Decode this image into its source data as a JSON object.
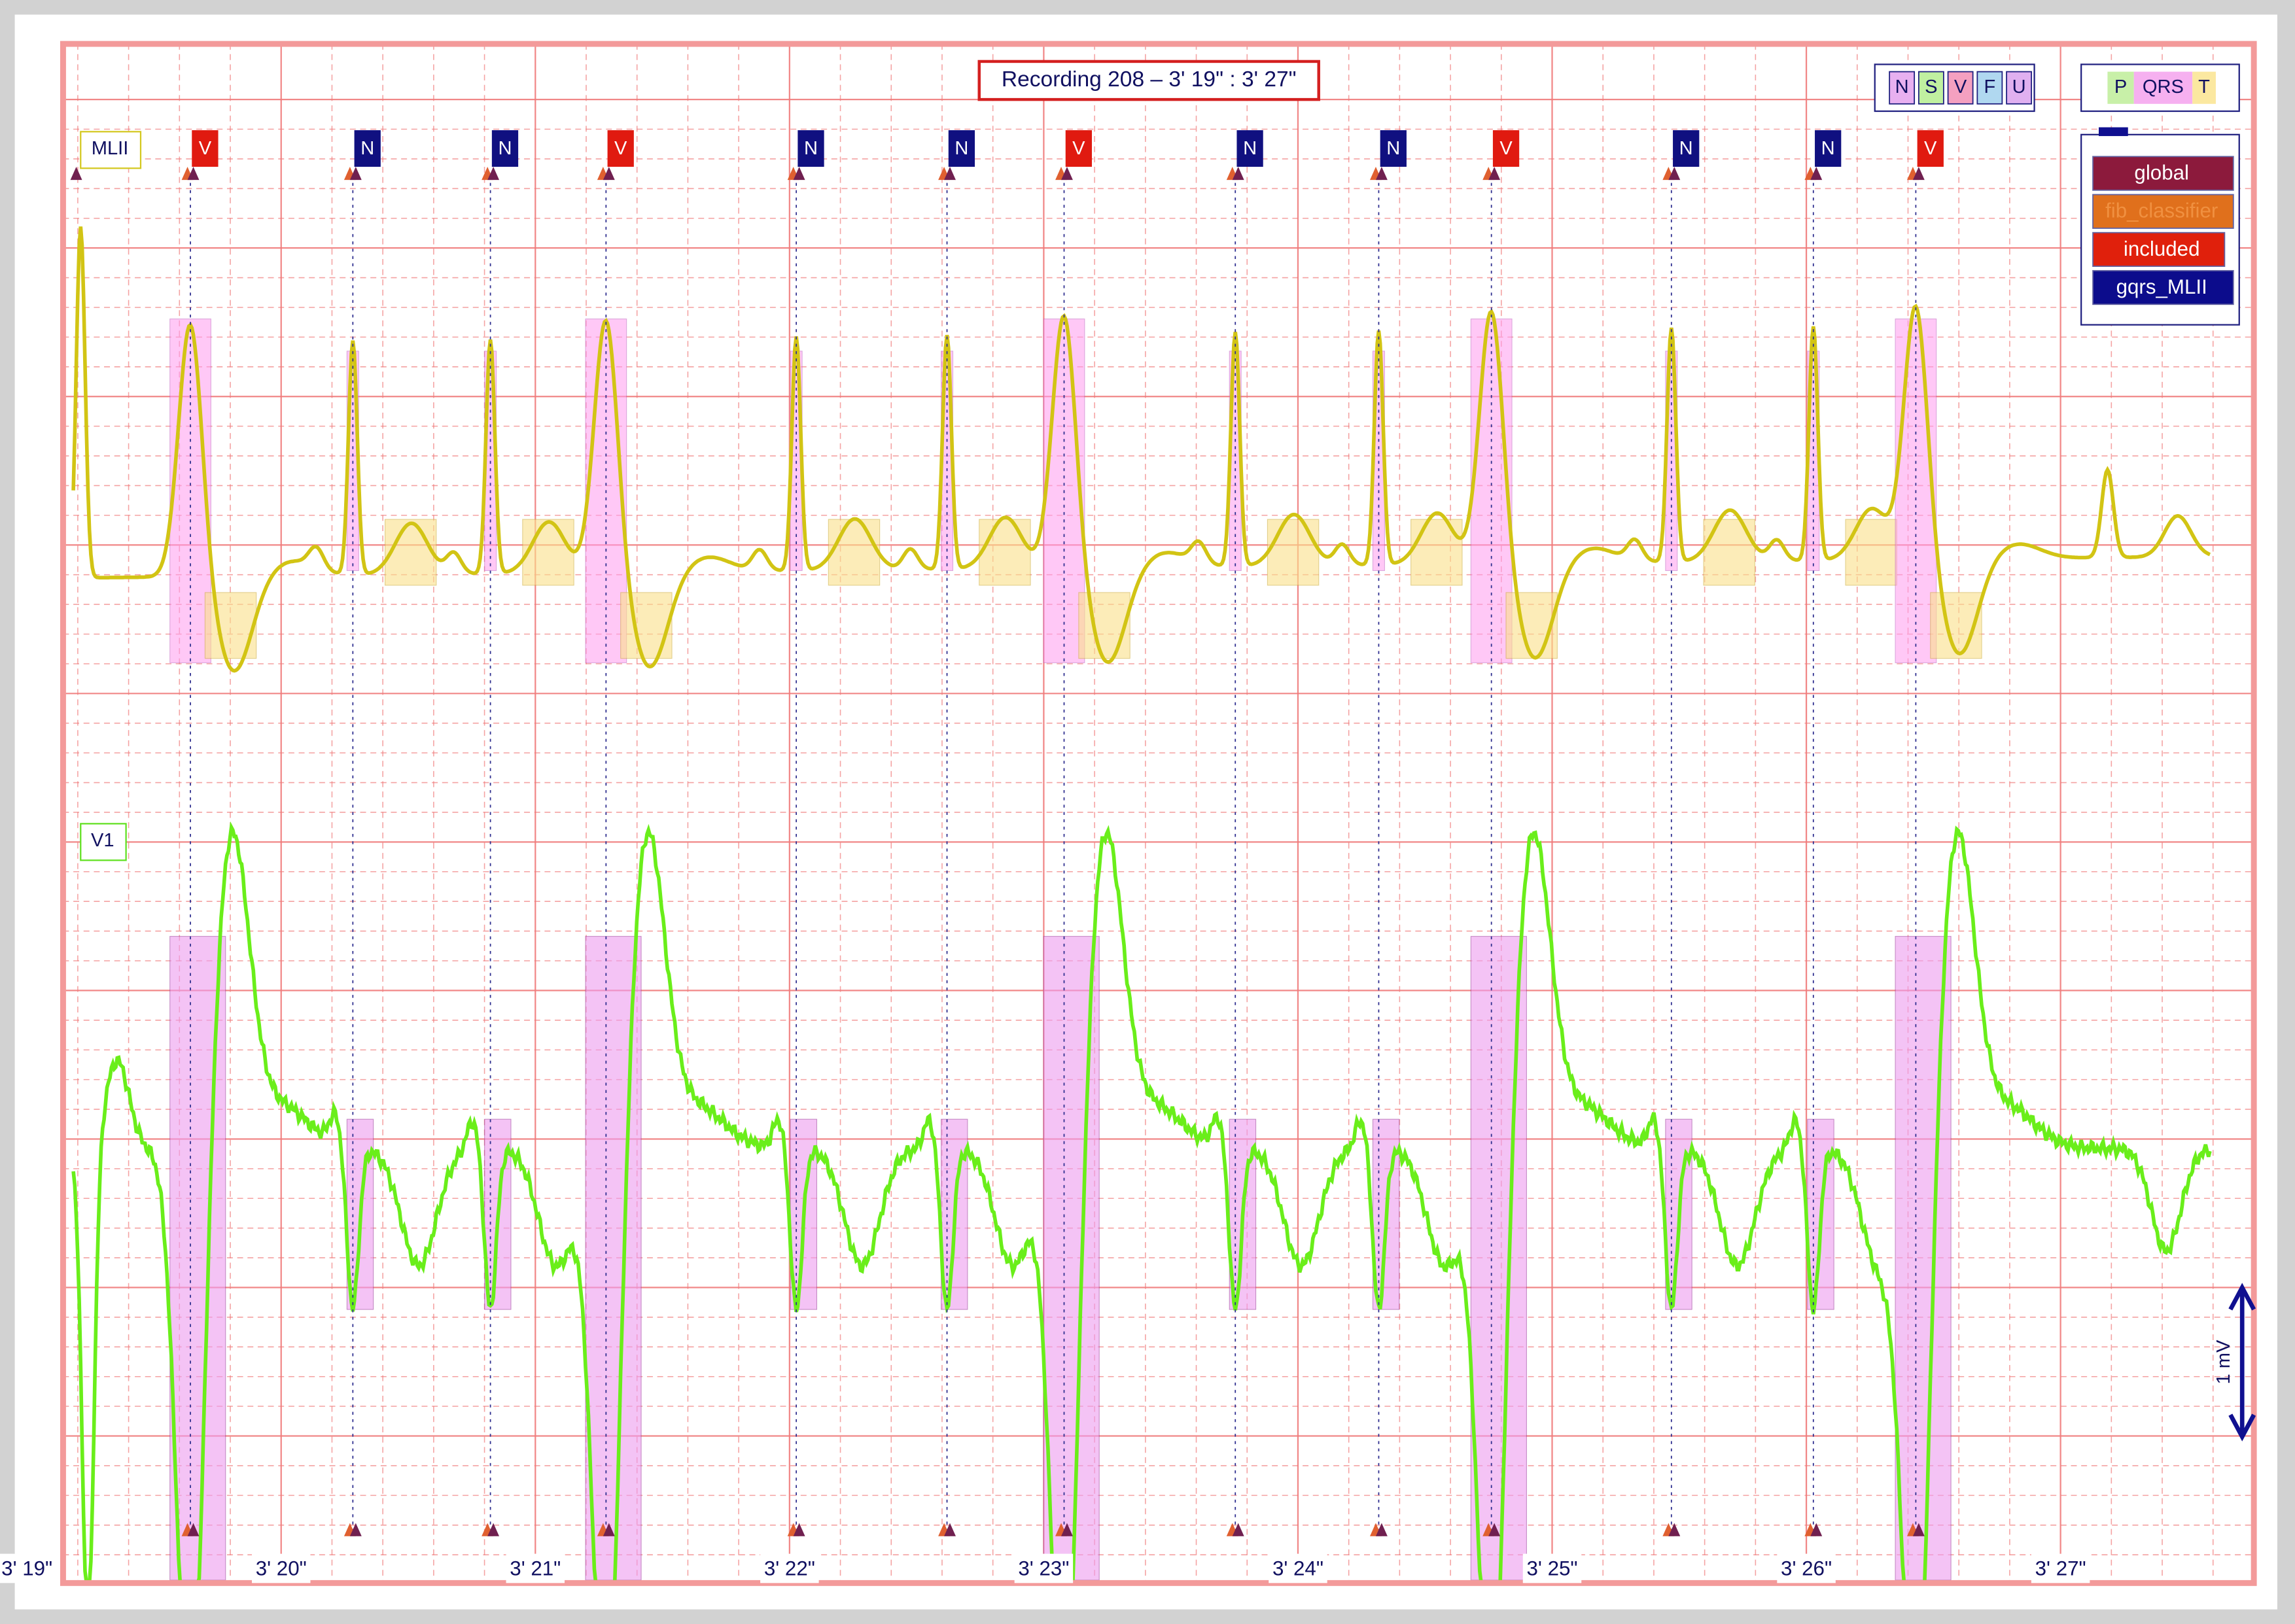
{
  "title": "Recording 208 – 3' 19\" : 3' 27\"",
  "leads": [
    "MLII",
    "V1"
  ],
  "beats": [
    "V",
    "N",
    "N",
    "V",
    "N",
    "N",
    "V",
    "N",
    "N",
    "V",
    "N",
    "N",
    "V"
  ],
  "beat_legend": [
    "N",
    "S",
    "V",
    "F",
    "U"
  ],
  "wave_legend": [
    "P",
    "QRS",
    "T"
  ],
  "annotators": [
    "global",
    "fib_classifier",
    "included",
    "gqrs_MLII"
  ],
  "time_labels": [
    "3' 19\"",
    "3' 20\"",
    "3' 21\"",
    "3' 22\"",
    "3' 23\"",
    "3' 24\"",
    "3' 25\"",
    "3' 26\"",
    "3' 27\""
  ],
  "scale_label": "1 mV"
}
